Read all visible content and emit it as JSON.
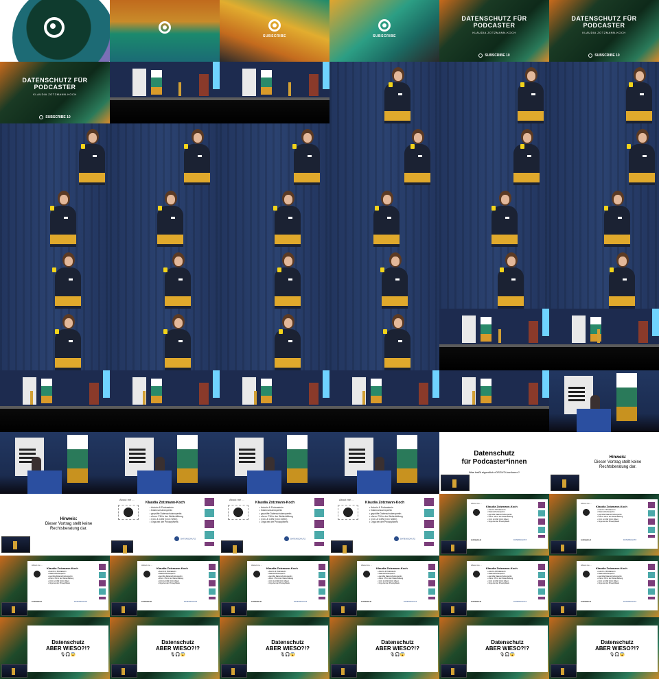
{
  "intro": {
    "subscribe_label": "SUBSCRIBE",
    "title_line1": "DATENSCHUTZ FÜR",
    "title_line2": "PODCASTER",
    "author": "KLAUDIA ZOTZMANN-KOCH",
    "subscribe_row": "SUBSCRIBE 10"
  },
  "slide_titles": {
    "main_line1": "Datenschutz",
    "main_line2": "für Podcaster*innen",
    "main_sub": "Was heißt eigentlich »DSGVO-konform«?",
    "hint_line1": "Hinweis:",
    "hint_line2": "Dieser Vortrag stellt keine",
    "hint_line3": "Rechtsberatung dar.",
    "wieso_line1": "Datenschutz",
    "wieso_line2": "ABER WIESO?!?",
    "wieso_emoji": "🎙🎧😱"
  },
  "about": {
    "label": "About me ...",
    "name": "Klaudia Zotzmann-Koch",
    "items": [
      "Autorin & Podcasterin",
      "Datenschutzexpertin",
      "geprüfte Datenschutzexpertin",
      "ehem. PM in der Weiterbildung",
      "CCC & C3W (CCC Wien)",
      "Orga bei der PrivacyWeek"
    ],
    "site": "zotzmann.at",
    "company": "DATENSCHUTZ"
  },
  "colors": {
    "stage_curtain": "#22355e",
    "sweater_yellow": "#e0a92c",
    "mic_yellow": "#f2d31a",
    "brand_green": "#1b8a6d",
    "brand_orange": "#c86a1c"
  }
}
